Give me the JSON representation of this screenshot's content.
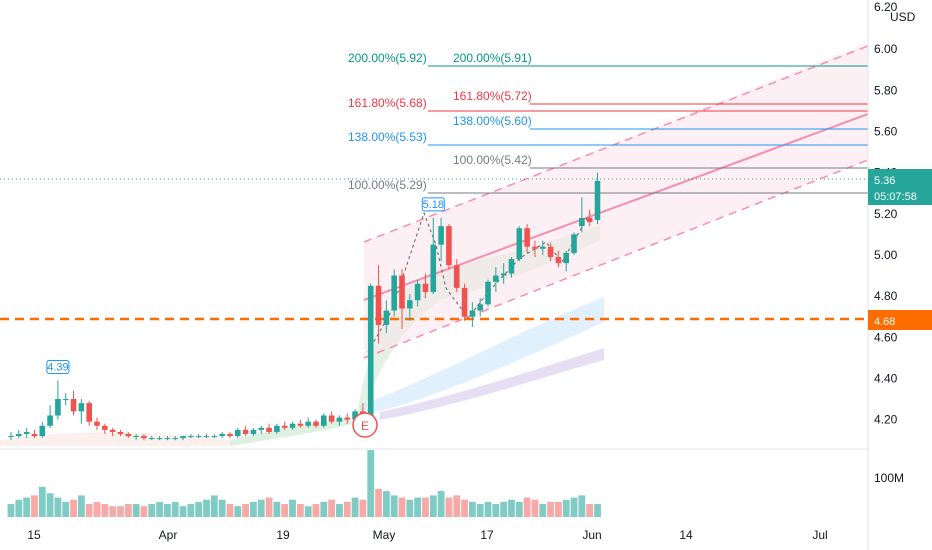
{
  "currency": "USD",
  "last_price_label": "5.36",
  "countdown_label": "05:07:58",
  "hline_label": "4.68",
  "earnings_marker": "E",
  "volume_axis_label": "100M",
  "colors": {
    "up": "#26a69a",
    "down": "#ef5350",
    "fib_teal": "#089981",
    "fib_red": "#f23645",
    "fib_blue": "#2196f3",
    "fib_gray": "#787b86",
    "channel": "#f48fb1",
    "hline": "#ff6d00"
  },
  "chart_data": {
    "type": "candlestick",
    "price_axis": {
      "ylim": [
        4.08,
        6.2
      ],
      "ticks": [
        "6.20",
        "6.00",
        "5.80",
        "5.60",
        "5.40",
        "5.20",
        "5.00",
        "4.80",
        "4.60",
        "4.40",
        "4.20"
      ]
    },
    "time_axis_labels": [
      "15",
      "Apr",
      "19",
      "May",
      "17",
      "Jun",
      "14",
      "Jul"
    ],
    "ohlc": [
      [
        4.12,
        4.14,
        4.1,
        4.12
      ],
      [
        4.12,
        4.15,
        4.11,
        4.13
      ],
      [
        4.13,
        4.16,
        4.11,
        4.14
      ],
      [
        4.13,
        4.15,
        4.11,
        4.12
      ],
      [
        4.12,
        4.19,
        4.11,
        4.17
      ],
      [
        4.17,
        4.27,
        4.16,
        4.22
      ],
      [
        4.22,
        4.39,
        4.2,
        4.3
      ],
      [
        4.3,
        4.33,
        4.27,
        4.3
      ],
      [
        4.3,
        4.34,
        4.22,
        4.24
      ],
      [
        4.24,
        4.3,
        4.18,
        4.28
      ],
      [
        4.28,
        4.29,
        4.17,
        4.19
      ],
      [
        4.19,
        4.21,
        4.15,
        4.17
      ],
      [
        4.17,
        4.18,
        4.13,
        4.15
      ],
      [
        4.15,
        4.16,
        4.12,
        4.14
      ],
      [
        4.14,
        4.15,
        4.12,
        4.13
      ],
      [
        4.13,
        4.14,
        4.11,
        4.12
      ],
      [
        4.12,
        4.13,
        4.1,
        4.12
      ],
      [
        4.12,
        4.13,
        4.1,
        4.11
      ],
      [
        4.11,
        4.12,
        4.1,
        4.11
      ],
      [
        4.11,
        4.12,
        4.1,
        4.11
      ],
      [
        4.11,
        4.12,
        4.1,
        4.11
      ],
      [
        4.11,
        4.12,
        4.1,
        4.11
      ],
      [
        4.11,
        4.12,
        4.1,
        4.12
      ],
      [
        4.12,
        4.13,
        4.11,
        4.12
      ],
      [
        4.12,
        4.13,
        4.11,
        4.12
      ],
      [
        4.12,
        4.13,
        4.11,
        4.12
      ],
      [
        4.12,
        4.13,
        4.11,
        4.12
      ],
      [
        4.12,
        4.14,
        4.11,
        4.13
      ],
      [
        4.13,
        4.14,
        4.11,
        4.12
      ],
      [
        4.12,
        4.16,
        4.11,
        4.15
      ],
      [
        4.15,
        4.17,
        4.12,
        4.13
      ],
      [
        4.13,
        4.16,
        4.12,
        4.15
      ],
      [
        4.15,
        4.17,
        4.13,
        4.16
      ],
      [
        4.16,
        4.18,
        4.13,
        4.14
      ],
      [
        4.14,
        4.18,
        4.13,
        4.17
      ],
      [
        4.17,
        4.19,
        4.15,
        4.16
      ],
      [
        4.16,
        4.19,
        4.15,
        4.18
      ],
      [
        4.18,
        4.2,
        4.16,
        4.17
      ],
      [
        4.17,
        4.21,
        4.16,
        4.19
      ],
      [
        4.19,
        4.2,
        4.16,
        4.17
      ],
      [
        4.17,
        4.23,
        4.16,
        4.22
      ],
      [
        4.22,
        4.24,
        4.18,
        4.19
      ],
      [
        4.19,
        4.22,
        4.17,
        4.21
      ],
      [
        4.21,
        4.23,
        4.18,
        4.2
      ],
      [
        4.2,
        4.25,
        4.19,
        4.24
      ],
      [
        4.24,
        4.28,
        4.2,
        4.22
      ],
      [
        4.22,
        4.86,
        4.2,
        4.85
      ],
      [
        4.85,
        4.95,
        4.57,
        4.66
      ],
      [
        4.66,
        4.78,
        4.62,
        4.73
      ],
      [
        4.73,
        4.93,
        4.7,
        4.9
      ],
      [
        4.9,
        4.93,
        4.64,
        4.74
      ],
      [
        4.74,
        4.81,
        4.68,
        4.78
      ],
      [
        4.78,
        4.88,
        4.75,
        4.86
      ],
      [
        4.86,
        4.91,
        4.79,
        4.82
      ],
      [
        4.82,
        5.18,
        4.81,
        5.05
      ],
      [
        5.05,
        5.18,
        4.97,
        5.14
      ],
      [
        5.14,
        5.15,
        4.93,
        4.95
      ],
      [
        4.95,
        4.98,
        4.82,
        4.84
      ],
      [
        4.84,
        4.86,
        4.68,
        4.7
      ],
      [
        4.7,
        4.77,
        4.65,
        4.73
      ],
      [
        4.73,
        4.79,
        4.7,
        4.76
      ],
      [
        4.76,
        4.88,
        4.75,
        4.87
      ],
      [
        4.87,
        4.94,
        4.82,
        4.9
      ],
      [
        4.9,
        4.96,
        4.86,
        4.91
      ],
      [
        4.91,
        4.99,
        4.89,
        4.98
      ],
      [
        4.98,
        5.14,
        4.97,
        5.13
      ],
      [
        5.13,
        5.15,
        5.01,
        5.04
      ],
      [
        5.04,
        5.07,
        4.99,
        5.03
      ],
      [
        5.03,
        5.07,
        5.0,
        5.04
      ],
      [
        5.04,
        5.06,
        4.97,
        4.99
      ],
      [
        4.99,
        5.02,
        4.94,
        4.96
      ],
      [
        4.96,
        5.02,
        4.92,
        5.01
      ],
      [
        5.01,
        5.11,
        5.0,
        5.1
      ],
      [
        5.14,
        5.28,
        5.11,
        5.18
      ],
      [
        5.18,
        5.22,
        5.14,
        5.16
      ],
      [
        5.17,
        5.4,
        5.15,
        5.36
      ]
    ],
    "fib_left": [
      {
        "label": "200.00%(5.92)",
        "color": "fib_teal",
        "value": 5.92
      },
      {
        "label": "161.80%(5.68)",
        "color": "fib_red",
        "value": 5.68
      },
      {
        "label": "138.00%(5.53)",
        "color": "fib_blue",
        "value": 5.53
      },
      {
        "label": "100.00%(5.29)",
        "color": "fib_gray",
        "value": 5.29
      }
    ],
    "fib_right": [
      {
        "label": "200.00%(5.91)",
        "color": "fib_teal",
        "value": 5.91
      },
      {
        "label": "161.80%(5.72)",
        "color": "fib_red",
        "value": 5.72
      },
      {
        "label": "138.00%(5.60)",
        "color": "fib_blue",
        "value": 5.6
      },
      {
        "label": "100.00%(5.42)",
        "color": "fib_gray",
        "value": 5.42
      }
    ],
    "annotations": [
      {
        "text": "4.39",
        "candle": 6,
        "value": 4.39
      },
      {
        "text": "5.18",
        "candle": 54,
        "value": 5.18
      }
    ],
    "horizontal_line": 4.68,
    "volume": [
      12,
      16,
      18,
      20,
      28,
      22,
      18,
      14,
      16,
      20,
      12,
      14,
      12,
      10,
      10,
      12,
      12,
      10,
      12,
      14,
      12,
      14,
      10,
      12,
      14,
      16,
      20,
      16,
      12,
      10,
      12,
      14,
      16,
      18,
      14,
      12,
      16,
      12,
      10,
      12,
      14,
      16,
      12,
      14,
      18,
      16,
      62,
      26,
      24,
      20,
      18,
      16,
      18,
      18,
      20,
      24,
      18,
      20,
      16,
      14,
      12,
      14,
      12,
      14,
      16,
      14,
      18,
      16,
      12,
      14,
      14,
      16,
      18,
      20,
      12,
      12
    ]
  }
}
